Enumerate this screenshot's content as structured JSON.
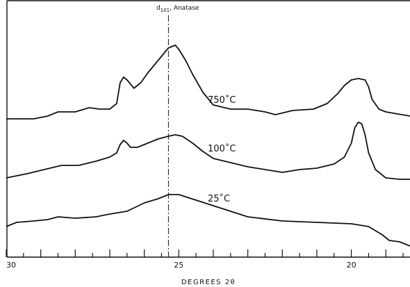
{
  "chart_data": {
    "type": "line",
    "title": "",
    "xlabel": "DEGREES 2θ",
    "ylabel": "",
    "xlim": [
      30,
      18.3
    ],
    "x_reversed": true,
    "x_ticks": [
      {
        "value": 30,
        "label": "30"
      },
      {
        "value": 25,
        "label": "25"
      },
      {
        "value": 20,
        "label": "20"
      }
    ],
    "grid": false,
    "legend": "none",
    "y_units": "arbitrary intensity (offset traces)",
    "annotations": [
      {
        "text": "d101, Anatase",
        "x": 25.3,
        "style": "dash-dot vertical line"
      }
    ],
    "series": [
      {
        "name": "750°C",
        "label": "750˚C",
        "points": [
          [
            30.0,
            0.14
          ],
          [
            29.2,
            0.14
          ],
          [
            28.8,
            0.16
          ],
          [
            28.5,
            0.19
          ],
          [
            28.0,
            0.19
          ],
          [
            27.6,
            0.22
          ],
          [
            27.3,
            0.21
          ],
          [
            27.0,
            0.21
          ],
          [
            26.8,
            0.25
          ],
          [
            26.7,
            0.4
          ],
          [
            26.6,
            0.44
          ],
          [
            26.5,
            0.42
          ],
          [
            26.3,
            0.36
          ],
          [
            26.1,
            0.4
          ],
          [
            25.9,
            0.47
          ],
          [
            25.6,
            0.56
          ],
          [
            25.4,
            0.62
          ],
          [
            25.3,
            0.65
          ],
          [
            25.1,
            0.67
          ],
          [
            25.0,
            0.64
          ],
          [
            24.8,
            0.56
          ],
          [
            24.6,
            0.46
          ],
          [
            24.3,
            0.33
          ],
          [
            24.0,
            0.24
          ],
          [
            23.5,
            0.21
          ],
          [
            23.0,
            0.21
          ],
          [
            22.5,
            0.19
          ],
          [
            22.2,
            0.17
          ],
          [
            21.7,
            0.2
          ],
          [
            21.1,
            0.21
          ],
          [
            20.7,
            0.25
          ],
          [
            20.4,
            0.32
          ],
          [
            20.2,
            0.38
          ],
          [
            20.0,
            0.42
          ],
          [
            19.8,
            0.43
          ],
          [
            19.6,
            0.42
          ],
          [
            19.5,
            0.37
          ],
          [
            19.4,
            0.28
          ],
          [
            19.2,
            0.21
          ],
          [
            19.0,
            0.19
          ],
          [
            18.3,
            0.16
          ]
        ]
      },
      {
        "name": "100°C",
        "label": "100˚C",
        "points": [
          [
            30.0,
            0.0
          ],
          [
            29.4,
            0.03
          ],
          [
            28.9,
            0.06
          ],
          [
            28.4,
            0.09
          ],
          [
            27.9,
            0.09
          ],
          [
            27.4,
            0.12
          ],
          [
            27.0,
            0.15
          ],
          [
            26.8,
            0.18
          ],
          [
            26.7,
            0.24
          ],
          [
            26.6,
            0.27
          ],
          [
            26.5,
            0.25
          ],
          [
            26.4,
            0.22
          ],
          [
            26.2,
            0.22
          ],
          [
            25.9,
            0.25
          ],
          [
            25.6,
            0.28
          ],
          [
            25.3,
            0.3
          ],
          [
            25.1,
            0.31
          ],
          [
            24.9,
            0.3
          ],
          [
            24.6,
            0.25
          ],
          [
            24.3,
            0.19
          ],
          [
            24.0,
            0.14
          ],
          [
            23.5,
            0.11
          ],
          [
            23.0,
            0.08
          ],
          [
            22.5,
            0.06
          ],
          [
            22.0,
            0.04
          ],
          [
            21.5,
            0.06
          ],
          [
            21.0,
            0.07
          ],
          [
            20.5,
            0.1
          ],
          [
            20.2,
            0.15
          ],
          [
            20.0,
            0.25
          ],
          [
            19.9,
            0.36
          ],
          [
            19.8,
            0.4
          ],
          [
            19.7,
            0.39
          ],
          [
            19.6,
            0.31
          ],
          [
            19.5,
            0.18
          ],
          [
            19.3,
            0.06
          ],
          [
            19.0,
            0.0
          ],
          [
            18.6,
            -0.01
          ],
          [
            18.3,
            -0.01
          ]
        ]
      },
      {
        "name": "25°C",
        "label": "25˚C",
        "points": [
          [
            30.0,
            0.0
          ],
          [
            29.7,
            0.03
          ],
          [
            29.2,
            0.04
          ],
          [
            28.8,
            0.05
          ],
          [
            28.5,
            0.07
          ],
          [
            28.0,
            0.06
          ],
          [
            27.4,
            0.07
          ],
          [
            27.0,
            0.09
          ],
          [
            26.5,
            0.11
          ],
          [
            26.0,
            0.17
          ],
          [
            25.6,
            0.2
          ],
          [
            25.3,
            0.23
          ],
          [
            25.0,
            0.23
          ],
          [
            24.5,
            0.19
          ],
          [
            24.0,
            0.15
          ],
          [
            23.5,
            0.11
          ],
          [
            23.0,
            0.07
          ],
          [
            22.0,
            0.04
          ],
          [
            21.0,
            0.03
          ],
          [
            20.0,
            0.02
          ],
          [
            19.5,
            0.0
          ],
          [
            19.1,
            -0.06
          ],
          [
            18.9,
            -0.1
          ],
          [
            18.6,
            -0.11
          ],
          [
            18.3,
            -0.14
          ]
        ]
      }
    ]
  }
}
